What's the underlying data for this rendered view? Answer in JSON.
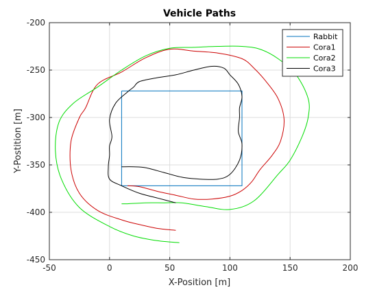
{
  "chart_data": {
    "type": "line",
    "title": "Vehicle Paths",
    "xlabel": "X-Position [m]",
    "ylabel": "Y-Postition [m]",
    "xlim": [
      -50,
      200
    ],
    "ylim": [
      -450,
      -200
    ],
    "xticks": [
      -50,
      0,
      50,
      100,
      150,
      200
    ],
    "yticks": [
      -450,
      -400,
      -350,
      -300,
      -250,
      -200
    ],
    "grid": true,
    "legend_position": "top-right",
    "series": [
      {
        "name": "Rabbit",
        "color": "#0072bd",
        "x": [
          10,
          110,
          110,
          10,
          10
        ],
        "y": [
          -272,
          -272,
          -372,
          -372,
          -272
        ]
      },
      {
        "name": "Cora1",
        "color": "#cc0000",
        "x": [
          55,
          40,
          25,
          10,
          -10,
          -25,
          -32,
          -32,
          -25,
          -20,
          -10,
          10,
          30,
          50,
          70,
          90,
          110,
          120,
          130,
          140,
          145,
          142,
          135,
          125,
          118,
          110,
          100,
          85,
          70,
          55,
          40,
          25,
          15
        ],
        "y": [
          -419,
          -417,
          -413,
          -408,
          -398,
          -380,
          -355,
          -325,
          -300,
          -290,
          -265,
          -252,
          -237,
          -228,
          -230,
          -232,
          -238,
          -248,
          -262,
          -280,
          -302,
          -325,
          -340,
          -355,
          -368,
          -377,
          -383,
          -386,
          -386,
          -382,
          -378,
          -373,
          -372
        ]
      },
      {
        "name": "Cora2",
        "color": "#00dd00",
        "x": [
          58,
          40,
          20,
          0,
          -25,
          -40,
          -45,
          -42,
          -30,
          -10,
          10,
          30,
          50,
          70,
          90,
          110,
          125,
          140,
          155,
          165,
          165,
          160,
          150,
          140,
          120,
          100,
          80,
          60,
          45,
          30,
          15,
          10
        ],
        "y": [
          -432,
          -430,
          -425,
          -415,
          -395,
          -365,
          -335,
          -305,
          -285,
          -268,
          -250,
          -235,
          -227,
          -226,
          -225,
          -225,
          -228,
          -238,
          -255,
          -280,
          -300,
          -320,
          -345,
          -360,
          -388,
          -397,
          -394,
          -390,
          -390,
          -390,
          -391,
          -391
        ]
      },
      {
        "name": "Cora3",
        "color": "#000000",
        "x": [
          55,
          40,
          25,
          10,
          0,
          -1,
          0,
          0,
          2,
          0,
          5,
          15,
          20,
          25,
          40,
          55,
          70,
          85,
          95,
          100,
          107,
          110,
          108,
          108,
          107,
          110,
          108,
          100,
          90,
          75,
          60,
          45,
          30,
          20,
          10
        ],
        "y": [
          -390,
          -385,
          -380,
          -372,
          -365,
          -352,
          -340,
          -330,
          -320,
          -302,
          -285,
          -273,
          -268,
          -262,
          -258,
          -255,
          -250,
          -246,
          -248,
          -255,
          -265,
          -278,
          -290,
          -300,
          -315,
          -328,
          -345,
          -360,
          -365,
          -365,
          -363,
          -358,
          -353,
          -352,
          -352
        ]
      }
    ]
  }
}
